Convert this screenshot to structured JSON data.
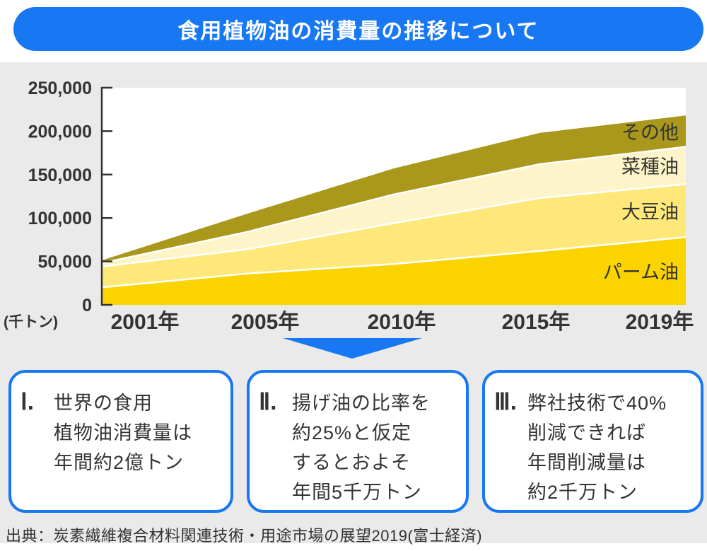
{
  "title": "食用植物油の消費量の推移について",
  "source": "出典：炭素繊維複合材料関連技術・用途市場の展望2019(富士経済)",
  "colors": {
    "accent_blue": "#1877F2",
    "panel_gray": "#EAEAEA",
    "text": "#333333",
    "palm": "#FBD400",
    "soybean": "#FFE87A",
    "rapeseed": "#FDF5C9",
    "others": "#A9981B"
  },
  "chart_data": {
    "type": "area",
    "stacked": true,
    "title": "",
    "xlabel": "",
    "ylabel": "",
    "unit_label": "(千トン)",
    "categories": [
      "2001年",
      "2005年",
      "2010年",
      "2015年",
      "2019年"
    ],
    "series": [
      {
        "name": "パーム油",
        "color": "#FBD400",
        "values": [
          20000,
          36000,
          47000,
          62000,
          78000
        ]
      },
      {
        "name": "大豆油",
        "color": "#FFE87A",
        "values": [
          24000,
          28000,
          47000,
          61000,
          61000
        ]
      },
      {
        "name": "菜種油",
        "color": "#FDF5C9",
        "values": [
          4000,
          20000,
          33000,
          39000,
          43000
        ]
      },
      {
        "name": "その他",
        "color": "#A9981B",
        "values": [
          3000,
          21000,
          30000,
          36000,
          36000
        ]
      }
    ],
    "totals": [
      51000,
      105000,
      157000,
      198000,
      218000
    ],
    "ylim": [
      0,
      250000
    ],
    "yticks": [
      0,
      50000,
      100000,
      150000,
      200000,
      250000
    ],
    "ytick_labels": [
      "0",
      "50,000",
      "100,000",
      "150,000",
      "200,000",
      "250,000"
    ],
    "grid": false,
    "legend_position": "right-inside"
  },
  "callouts": [
    {
      "numeral": "Ⅰ.",
      "lines": [
        "世界の食用",
        "植物油消費量は",
        "年間約2億トン"
      ]
    },
    {
      "numeral": "Ⅱ.",
      "lines": [
        "揚げ油の比率を",
        "約25%と仮定",
        "するとおよそ",
        "年間5千万トン"
      ]
    },
    {
      "numeral": "Ⅲ.",
      "lines": [
        "弊社技術で40%",
        "削減できれば",
        "年間削減量は",
        "約2千万トン"
      ]
    }
  ]
}
